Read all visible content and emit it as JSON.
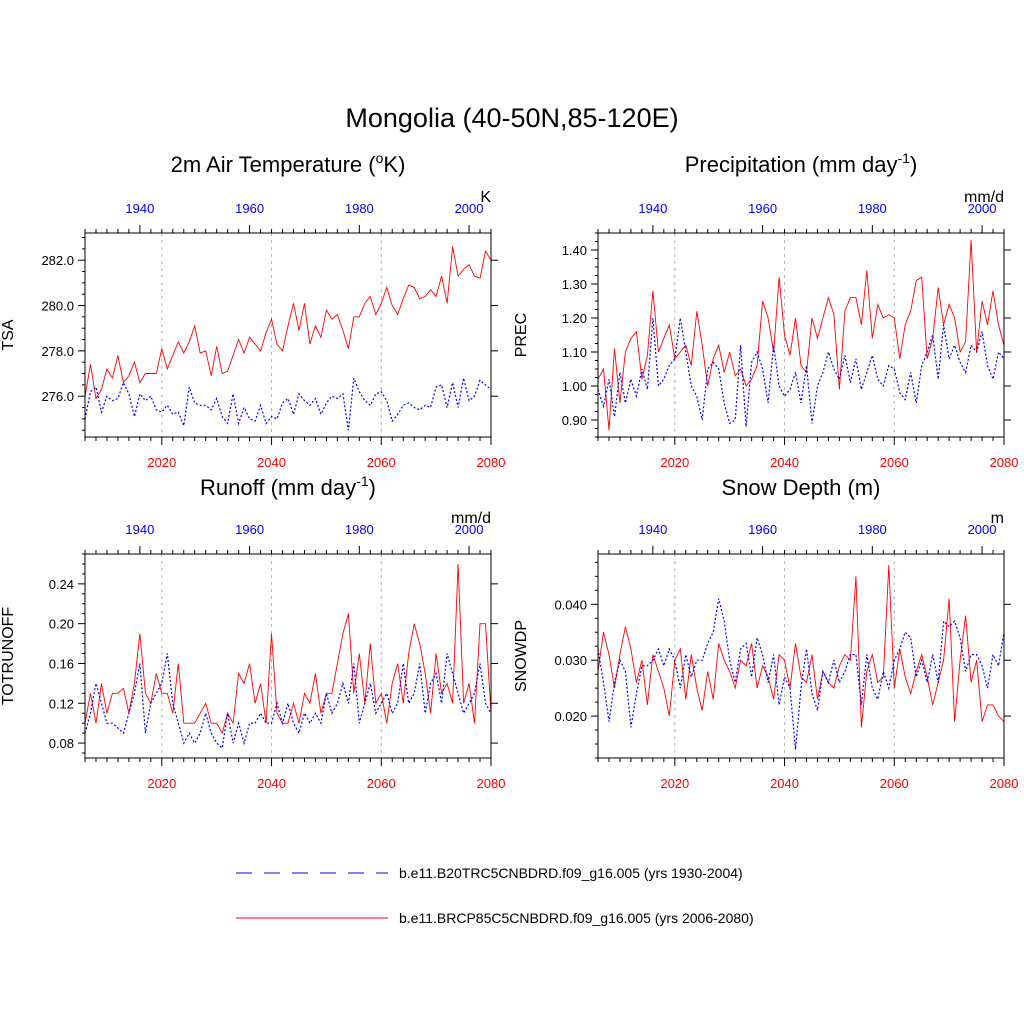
{
  "figure_title": "Mongolia (40-50N,85-120E)",
  "colors": {
    "historical": "#0000ff",
    "future": "#ff0000",
    "grid": "#b0b0b0",
    "axis": "#000000"
  },
  "legend": [
    {
      "label": "b.e11.B20TRC5CNBDRD.f09_g16.005 (yrs 1930-2004)",
      "color": "#0000ff",
      "style": "dashed"
    },
    {
      "label": "b.e11.BRCP85C5CNBDRD.f09_g16.005 (yrs 2006-2080)",
      "color": "#ff0000",
      "style": "solid"
    }
  ],
  "chart_data": [
    {
      "type": "line",
      "title_main": "2m Air Temperature (",
      "title_sup": "o",
      "title_after": "K)",
      "ylabel": "TSA",
      "units": "K",
      "xlim_bottom": [
        2006,
        2080
      ],
      "xlim_top": [
        1930,
        2004
      ],
      "ylim": [
        274.2,
        283.2
      ],
      "yticks": [
        276.0,
        278.0,
        280.0,
        282.0
      ],
      "ytick_labels": [
        "276.0",
        "278.0",
        "280.0",
        "282.0"
      ],
      "bottom_ticks": [
        2020,
        2040,
        2060,
        2080
      ],
      "top_ticks": [
        1940,
        1960,
        1980,
        2000
      ],
      "vgrid": [
        2020,
        2040,
        2060
      ],
      "series": [
        {
          "name": "b.e11.BRCP85C5CNBDRD.f09_g16.005",
          "x_start": 2006,
          "values": [
            276.0,
            277.4,
            275.9,
            276.3,
            277.2,
            276.8,
            277.8,
            276.6,
            276.9,
            277.5,
            276.6,
            277.0,
            277.0,
            277.0,
            278.1,
            277.2,
            277.8,
            278.4,
            277.9,
            278.4,
            279.1,
            277.9,
            278.0,
            276.9,
            278.2,
            277.0,
            277.1,
            277.8,
            278.5,
            277.9,
            278.6,
            278.3,
            278.0,
            278.8,
            279.4,
            278.3,
            278.0,
            279.1,
            280.1,
            278.9,
            280.1,
            278.3,
            279.1,
            278.6,
            279.8,
            279.4,
            279.6,
            278.9,
            278.1,
            279.5,
            279.5,
            280.1,
            280.4,
            279.6,
            280.1,
            280.8,
            280.0,
            279.6,
            280.3,
            280.9,
            280.8,
            280.3,
            280.4,
            280.7,
            280.4,
            281.3,
            280.1,
            282.6,
            281.3,
            281.6,
            281.8,
            281.3,
            281.2,
            282.4,
            282.0
          ]
        },
        {
          "name": "b.e11.B20TRC5CNBDRD.f09_g16.005",
          "x_start": 2006,
          "values": [
            275.0,
            276.2,
            276.4,
            275.3,
            276.0,
            275.8,
            275.9,
            276.6,
            276.1,
            275.1,
            276.1,
            275.8,
            276.0,
            275.4,
            275.3,
            275.6,
            275.2,
            275.3,
            274.7,
            276.4,
            275.7,
            275.6,
            275.6,
            275.4,
            275.9,
            275.1,
            274.8,
            276.1,
            274.8,
            275.5,
            275.0,
            274.9,
            275.6,
            274.8,
            275.1,
            275.0,
            275.7,
            275.9,
            275.2,
            276.1,
            275.8,
            275.6,
            275.9,
            275.2,
            275.7,
            276.0,
            275.9,
            276.1,
            274.5,
            276.8,
            276.2,
            275.8,
            275.6,
            276.1,
            276.2,
            275.8,
            274.9,
            275.2,
            275.6,
            275.7,
            275.5,
            275.4,
            275.6,
            275.5,
            276.4,
            276.5,
            275.5,
            276.6,
            275.5,
            276.8,
            275.8,
            276.0,
            276.7,
            276.5,
            276.3
          ]
        }
      ]
    },
    {
      "type": "line",
      "title_main": "Precipitation (mm day",
      "title_sup": "-1",
      "title_after": ")",
      "ylabel": "PREC",
      "units": "mm/d",
      "xlim_bottom": [
        2006,
        2080
      ],
      "xlim_top": [
        1930,
        2004
      ],
      "ylim": [
        0.85,
        1.45
      ],
      "yticks": [
        0.9,
        1.0,
        1.1,
        1.2,
        1.3,
        1.4
      ],
      "ytick_labels": [
        "0.90",
        "1.00",
        "1.10",
        "1.20",
        "1.30",
        "1.40"
      ],
      "bottom_ticks": [
        2020,
        2040,
        2060,
        2080
      ],
      "top_ticks": [
        1940,
        1960,
        1980,
        2000
      ],
      "vgrid": [
        2020,
        2040,
        2060
      ],
      "series": [
        {
          "name": "b.e11.BRCP85C5CNBDRD.f09_g16.005",
          "x_start": 2006,
          "values": [
            1.02,
            1.05,
            0.87,
            1.11,
            0.95,
            1.1,
            1.14,
            1.16,
            1.02,
            1.09,
            1.28,
            1.1,
            1.14,
            1.18,
            1.08,
            1.1,
            1.12,
            1.06,
            1.22,
            1.12,
            1.0,
            1.08,
            1.12,
            1.04,
            1.1,
            1.03,
            1.05,
            1.0,
            1.02,
            1.06,
            1.25,
            1.2,
            1.1,
            1.32,
            1.15,
            1.09,
            1.2,
            1.06,
            1.04,
            1.2,
            1.14,
            1.2,
            1.26,
            1.21,
            0.99,
            1.22,
            1.26,
            1.26,
            1.18,
            1.34,
            1.14,
            1.24,
            1.2,
            1.21,
            1.2,
            1.08,
            1.18,
            1.22,
            1.31,
            1.32,
            1.08,
            1.14,
            1.29,
            1.18,
            1.24,
            1.2,
            1.1,
            1.13,
            1.43,
            1.1,
            1.25,
            1.18,
            1.28,
            1.18,
            1.12
          ]
        },
        {
          "name": "b.e11.B20TRC5CNBDRD.f09_g16.005",
          "x_start": 2006,
          "values": [
            0.99,
            0.94,
            1.02,
            0.91,
            1.04,
            0.95,
            1.02,
            0.97,
            1.05,
            0.99,
            1.2,
            1.0,
            1.02,
            1.06,
            1.08,
            1.2,
            1.1,
            1.0,
            0.97,
            0.9,
            1.05,
            1.07,
            1.05,
            0.95,
            0.89,
            0.9,
            1.12,
            0.88,
            1.07,
            1.1,
            1.05,
            0.95,
            1.12,
            1.0,
            0.97,
            0.99,
            1.04,
            0.95,
            1.06,
            0.89,
            1.0,
            1.04,
            1.1,
            1.05,
            1.02,
            1.09,
            1.01,
            1.08,
            0.99,
            1.04,
            1.09,
            1.02,
            1.0,
            1.06,
            1.05,
            0.98,
            0.96,
            1.04,
            0.95,
            1.06,
            1.1,
            1.15,
            1.02,
            1.18,
            1.08,
            1.12,
            1.07,
            1.04,
            1.12,
            1.1,
            1.16,
            1.06,
            1.02,
            1.1,
            1.08
          ]
        }
      ]
    },
    {
      "type": "line",
      "title_main": "Runoff (mm day",
      "title_sup": "-1",
      "title_after": ")",
      "ylabel": "TOTRUNOFF",
      "units": "mm/d",
      "xlim_bottom": [
        2006,
        2080
      ],
      "xlim_top": [
        1930,
        2004
      ],
      "ylim": [
        0.065,
        0.27
      ],
      "yticks": [
        0.08,
        0.12,
        0.16,
        0.2,
        0.24
      ],
      "ytick_labels": [
        "0.08",
        "0.12",
        "0.16",
        "0.20",
        "0.24"
      ],
      "bottom_ticks": [
        2020,
        2040,
        2060,
        2080
      ],
      "top_ticks": [
        1940,
        1960,
        1980,
        2000
      ],
      "vgrid": [
        2020,
        2040,
        2060
      ],
      "series": [
        {
          "name": "b.e11.BRCP85C5CNBDRD.f09_g16.005",
          "x_start": 2006,
          "values": [
            0.1,
            0.13,
            0.1,
            0.14,
            0.11,
            0.13,
            0.13,
            0.135,
            0.11,
            0.14,
            0.19,
            0.13,
            0.12,
            0.15,
            0.13,
            0.13,
            0.11,
            0.16,
            0.1,
            0.1,
            0.1,
            0.11,
            0.12,
            0.1,
            0.1,
            0.09,
            0.11,
            0.1,
            0.15,
            0.14,
            0.16,
            0.12,
            0.14,
            0.1,
            0.19,
            0.11,
            0.1,
            0.1,
            0.12,
            0.1,
            0.13,
            0.12,
            0.15,
            0.11,
            0.13,
            0.13,
            0.16,
            0.19,
            0.21,
            0.13,
            0.17,
            0.12,
            0.18,
            0.12,
            0.13,
            0.1,
            0.14,
            0.16,
            0.12,
            0.17,
            0.2,
            0.18,
            0.15,
            0.11,
            0.17,
            0.13,
            0.14,
            0.12,
            0.26,
            0.12,
            0.14,
            0.1,
            0.2,
            0.2,
            0.11
          ]
        },
        {
          "name": "b.e11.B20TRC5CNBDRD.f09_g16.005",
          "x_start": 2006,
          "values": [
            0.09,
            0.11,
            0.14,
            0.12,
            0.1,
            0.1,
            0.095,
            0.09,
            0.11,
            0.13,
            0.16,
            0.09,
            0.12,
            0.13,
            0.14,
            0.17,
            0.12,
            0.1,
            0.08,
            0.09,
            0.08,
            0.09,
            0.11,
            0.09,
            0.08,
            0.075,
            0.11,
            0.08,
            0.1,
            0.08,
            0.1,
            0.1,
            0.11,
            0.1,
            0.1,
            0.12,
            0.1,
            0.12,
            0.1,
            0.09,
            0.11,
            0.1,
            0.11,
            0.1,
            0.13,
            0.11,
            0.12,
            0.14,
            0.12,
            0.16,
            0.1,
            0.12,
            0.14,
            0.11,
            0.12,
            0.13,
            0.11,
            0.12,
            0.16,
            0.12,
            0.13,
            0.16,
            0.11,
            0.14,
            0.15,
            0.12,
            0.17,
            0.15,
            0.13,
            0.11,
            0.12,
            0.13,
            0.16,
            0.12,
            0.11
          ]
        }
      ]
    },
    {
      "type": "line",
      "title_main": "Snow Depth (m)",
      "title_sup": "",
      "title_after": "",
      "ylabel": "SNOWDP",
      "units": "m",
      "xlim_bottom": [
        2006,
        2080
      ],
      "xlim_top": [
        1930,
        2004
      ],
      "ylim": [
        0.0125,
        0.049
      ],
      "yticks": [
        0.02,
        0.03,
        0.04
      ],
      "ytick_labels": [
        "0.020",
        "0.030",
        "0.040"
      ],
      "bottom_ticks": [
        2020,
        2040,
        2060,
        2080
      ],
      "top_ticks": [
        1940,
        1960,
        1980,
        2000
      ],
      "vgrid": [
        2020,
        2040,
        2060
      ],
      "series": [
        {
          "name": "b.e11.BRCP85C5CNBDRD.f09_g16.005",
          "x_start": 2006,
          "values": [
            0.028,
            0.035,
            0.031,
            0.025,
            0.031,
            0.036,
            0.032,
            0.026,
            0.03,
            0.022,
            0.031,
            0.028,
            0.025,
            0.02,
            0.03,
            0.032,
            0.023,
            0.031,
            0.025,
            0.021,
            0.028,
            0.023,
            0.033,
            0.03,
            0.028,
            0.025,
            0.03,
            0.029,
            0.033,
            0.025,
            0.029,
            0.027,
            0.023,
            0.031,
            0.03,
            0.025,
            0.033,
            0.027,
            0.026,
            0.031,
            0.023,
            0.028,
            0.026,
            0.025,
            0.029,
            0.031,
            0.03,
            0.045,
            0.018,
            0.028,
            0.031,
            0.026,
            0.027,
            0.047,
            0.025,
            0.032,
            0.027,
            0.024,
            0.028,
            0.031,
            0.027,
            0.022,
            0.026,
            0.03,
            0.041,
            0.019,
            0.03,
            0.038,
            0.026,
            0.03,
            0.019,
            0.022,
            0.022,
            0.02,
            0.019
          ]
        },
        {
          "name": "b.e11.B20TRC5CNBDRD.f09_g16.005",
          "x_start": 2006,
          "values": [
            0.032,
            0.026,
            0.019,
            0.026,
            0.03,
            0.028,
            0.018,
            0.024,
            0.029,
            0.029,
            0.03,
            0.032,
            0.029,
            0.032,
            0.03,
            0.025,
            0.031,
            0.027,
            0.03,
            0.03,
            0.033,
            0.035,
            0.041,
            0.037,
            0.03,
            0.026,
            0.032,
            0.033,
            0.027,
            0.034,
            0.031,
            0.026,
            0.031,
            0.022,
            0.027,
            0.025,
            0.014,
            0.025,
            0.032,
            0.024,
            0.021,
            0.028,
            0.026,
            0.03,
            0.026,
            0.028,
            0.031,
            0.031,
            0.022,
            0.031,
            0.025,
            0.023,
            0.028,
            0.025,
            0.03,
            0.032,
            0.035,
            0.034,
            0.027,
            0.03,
            0.026,
            0.031,
            0.026,
            0.037,
            0.036,
            0.037,
            0.034,
            0.028,
            0.031,
            0.031,
            0.029,
            0.025,
            0.031,
            0.029,
            0.035
          ]
        }
      ]
    }
  ]
}
